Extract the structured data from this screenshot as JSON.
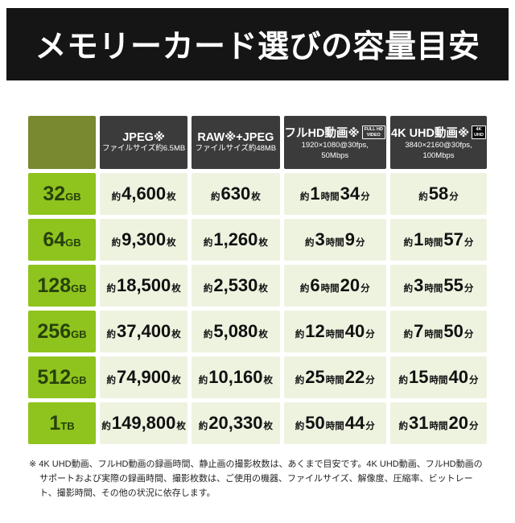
{
  "note": "※ 4K UHD動画、フルHD動画の録画時間、静止画の撮影枚数は、あくまで目安です。4K UHD動画、フルHD動画のサポートおよび実際の録画時間、撮影枚数は、ご使用の機器、ファイルサイズ、解像度、圧縮率、ビットレート、撮影時間、その他の状況に依存します。",
  "colors": {
    "banner_bg": "#151515",
    "header_bg": "#3b3b3b",
    "corner_bg": "#78892f",
    "capacity_bg": "#8fc31e",
    "capacity_text": "#26420b",
    "cell_bg": "#eef3e0"
  },
  "chart_data": {
    "type": "table",
    "title": "メモリーカード選びの容量目安",
    "columns": [
      {
        "key": "jpeg",
        "title": "JPEG※",
        "badge": null,
        "subs": [
          "ファイルサイズ約6.5MB"
        ]
      },
      {
        "key": "raw-jpeg",
        "title": "RAW※+JPEG",
        "badge": null,
        "subs": [
          "ファイルサイズ約48MB"
        ]
      },
      {
        "key": "fullhd-video",
        "title": "フルHD動画※",
        "badge": [
          "FULL HD",
          "VIDEO"
        ],
        "badge_style": "outline",
        "badge_name": "fullhd-video-badge",
        "subs": [
          "1920×1080@30fps,",
          "50Mbps"
        ]
      },
      {
        "key": "4k-uhd-video",
        "title": "4K UHD動画※",
        "badge": [
          "4K",
          "UHD"
        ],
        "badge_style": "filled",
        "badge_name": "4k-uhd-badge",
        "subs": [
          "3840×2160@30fps,",
          "100Mbps"
        ]
      }
    ],
    "rows": [
      {
        "capacity": "32GB",
        "values": [
          "約4,600枚",
          "約630枚",
          "約1時間34分",
          "約58分"
        ]
      },
      {
        "capacity": "64GB",
        "values": [
          "約9,300枚",
          "約1,260枚",
          "約3時間9分",
          "約1時間57分"
        ]
      },
      {
        "capacity": "128GB",
        "values": [
          "約18,500枚",
          "約2,530枚",
          "約6時間20分",
          "約3時間55分"
        ]
      },
      {
        "capacity": "256GB",
        "values": [
          "約37,400枚",
          "約5,080枚",
          "約12時間40分",
          "約7時間50分"
        ]
      },
      {
        "capacity": "512GB",
        "values": [
          "約74,900枚",
          "約10,160枚",
          "約25時間22分",
          "約15時間40分"
        ]
      },
      {
        "capacity": "1TB",
        "values": [
          "約149,800枚",
          "約20,330枚",
          "約50時間44分",
          "約31時間20分"
        ]
      }
    ]
  }
}
